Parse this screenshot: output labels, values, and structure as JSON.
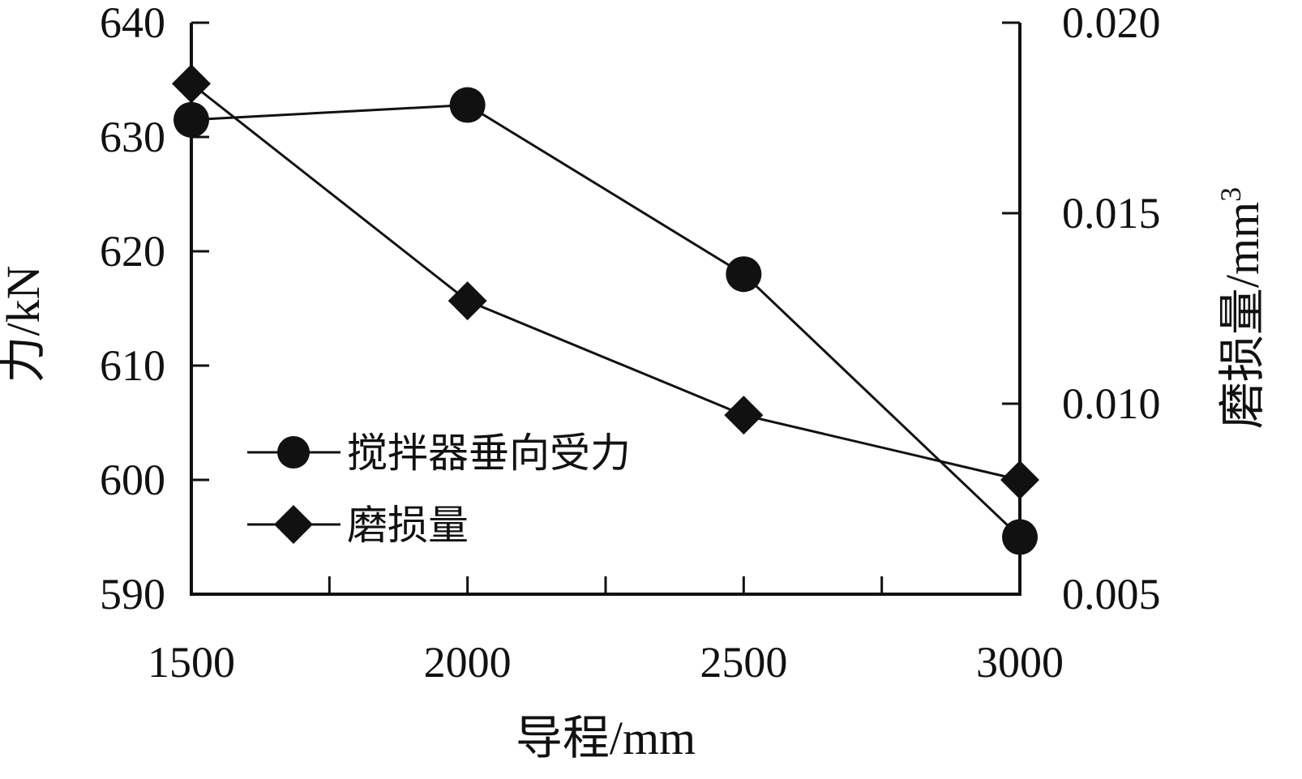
{
  "chart_data": {
    "type": "line",
    "x": [
      1500,
      2000,
      2500,
      3000
    ],
    "xlabel": "导程/mm",
    "xlim": [
      1500,
      3000
    ],
    "xticks": [
      1500,
      2000,
      2500,
      3000
    ],
    "xticklabels": [
      "1500",
      "2000",
      "2500",
      "3000"
    ],
    "ylabel_left": "力/kN",
    "ylim_left": [
      590,
      640
    ],
    "yticks_left": [
      "590",
      "600",
      "610",
      "620",
      "630",
      "640"
    ],
    "ylabel_right": "磨损量/mm",
    "ylabel_right_sup": "3",
    "ylim_right": [
      0.005,
      0.02
    ],
    "yticks_right": [
      "0.005",
      "0.010",
      "0.015",
      "0.020"
    ],
    "legend_position": "lower-left",
    "grid": false,
    "series": [
      {
        "name": "搅拌器垂向受力",
        "axis": "left",
        "marker": "circle",
        "color": "#111111",
        "values": [
          631.5,
          632.8,
          618.0,
          595.0
        ]
      },
      {
        "name": "磨损量",
        "axis": "right",
        "marker": "diamond",
        "color": "#111111",
        "values": [
          0.0184,
          0.0127,
          0.0097,
          0.008
        ]
      }
    ]
  }
}
